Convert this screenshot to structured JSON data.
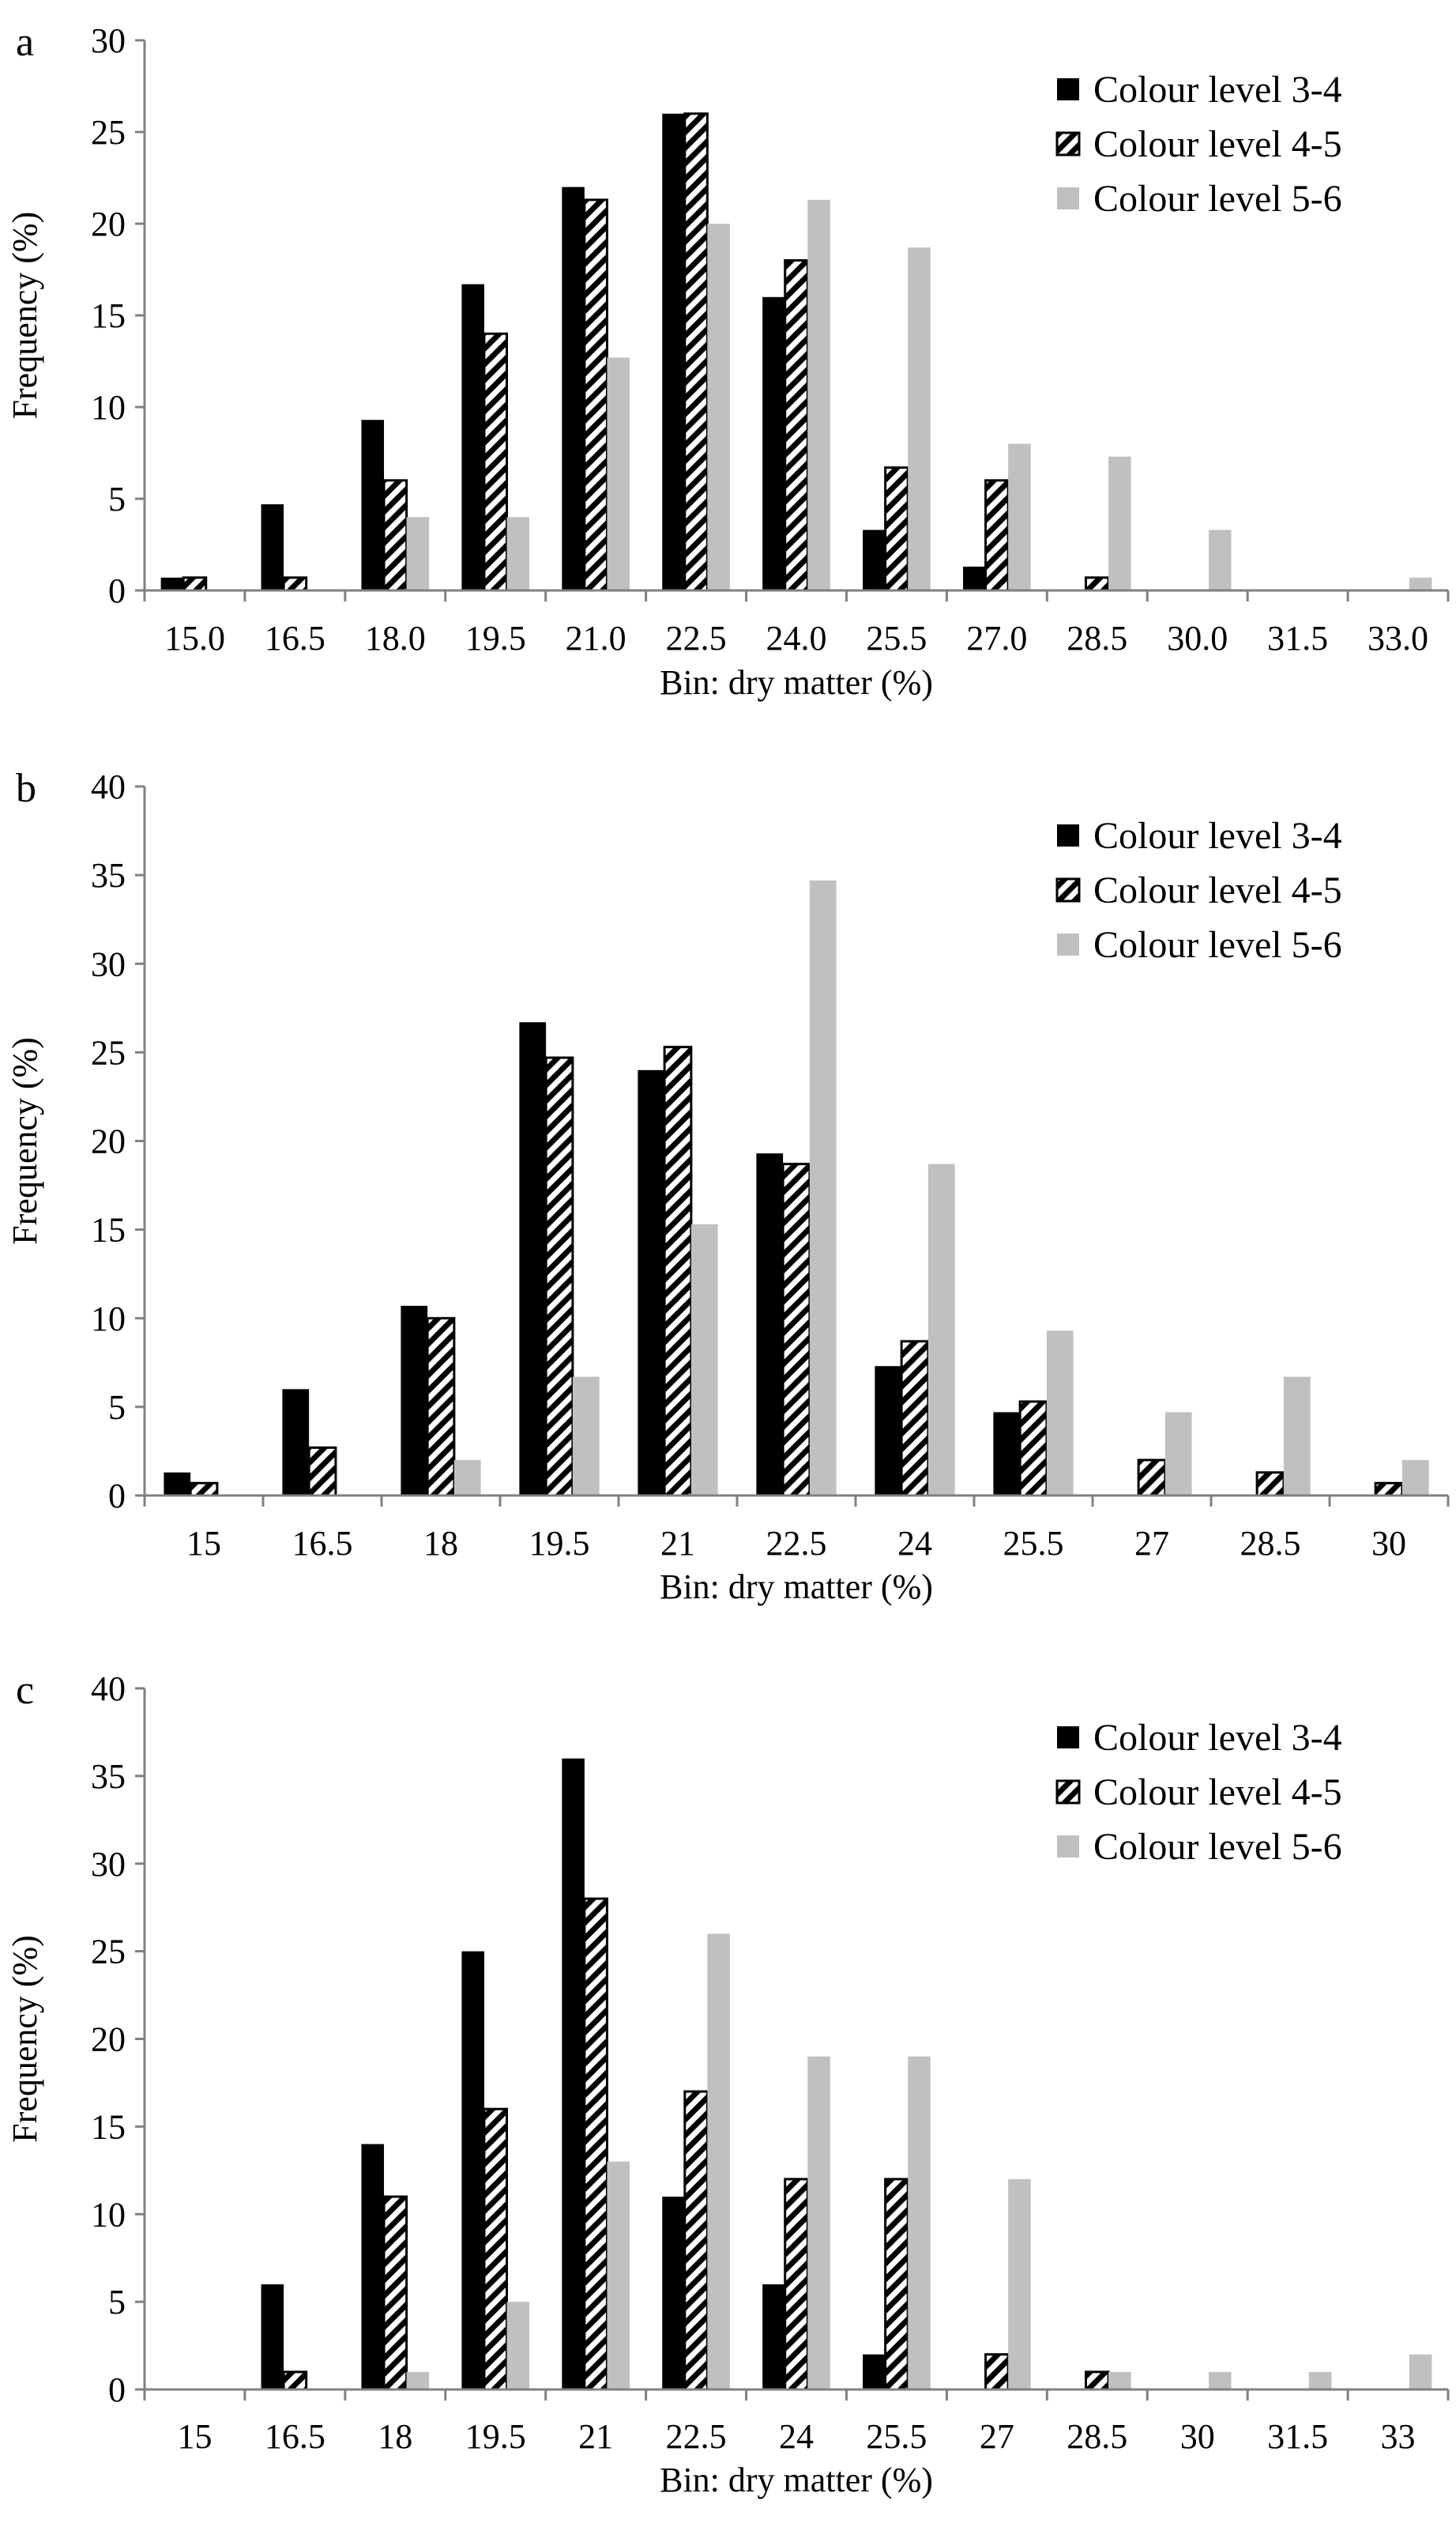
{
  "colors": {
    "series_3_4": "#000000",
    "series_4_5": "hatched black/white",
    "series_5_6": "#c0c0c0",
    "axis": "#808080"
  },
  "chart_data": [
    {
      "panel": "a",
      "type": "bar",
      "xlabel": "Bin: dry matter (%)",
      "ylabel": "Frequency (%)",
      "ylim": [
        0,
        30
      ],
      "yticks": [
        0,
        5,
        10,
        15,
        20,
        25,
        30
      ],
      "legend": "top-right",
      "categories": [
        "15.0",
        "16.5",
        "18.0",
        "19.5",
        "21.0",
        "22.5",
        "24.0",
        "25.5",
        "27.0",
        "28.5",
        "30.0",
        "31.5",
        "33.0"
      ],
      "series": [
        {
          "name": "Colour level 3-4",
          "values": [
            0.7,
            4.7,
            9.3,
            16.7,
            22,
            26,
            16,
            3.3,
            1.3,
            0,
            0,
            0,
            0
          ]
        },
        {
          "name": "Colour level 4-5",
          "values": [
            0.7,
            0.7,
            6,
            14,
            21.3,
            26,
            18,
            6.7,
            6,
            0.7,
            0,
            0,
            0
          ]
        },
        {
          "name": "Colour level 5-6",
          "values": [
            0,
            0,
            4,
            4,
            12.7,
            20,
            21.3,
            18.7,
            8,
            7.3,
            3.3,
            0,
            0.7
          ]
        }
      ]
    },
    {
      "panel": "b",
      "type": "bar",
      "xlabel": "Bin: dry matter (%)",
      "ylabel": "Frequency (%)",
      "ylim": [
        0,
        40
      ],
      "yticks": [
        0,
        5,
        10,
        15,
        20,
        25,
        30,
        35,
        40
      ],
      "legend": "top-right",
      "categories": [
        "15",
        "16.5",
        "18",
        "19.5",
        "21",
        "22.5",
        "24",
        "25.5",
        "27",
        "28.5",
        "30"
      ],
      "series": [
        {
          "name": "Colour level 3-4",
          "values": [
            1.3,
            6,
            10.7,
            26.7,
            24,
            19.3,
            7.3,
            4.7,
            0,
            0,
            0
          ]
        },
        {
          "name": "Colour level 4-5",
          "values": [
            0.7,
            2.7,
            10,
            24.7,
            25.3,
            18.7,
            8.7,
            5.3,
            2,
            1.3,
            0.7
          ]
        },
        {
          "name": "Colour level 5-6",
          "values": [
            0,
            0,
            2,
            6.7,
            15.3,
            34.7,
            18.7,
            9.3,
            4.7,
            6.7,
            2
          ]
        }
      ]
    },
    {
      "panel": "c",
      "type": "bar",
      "xlabel": "Bin: dry matter (%)",
      "ylabel": "Frequency (%)",
      "ylim": [
        0,
        40
      ],
      "yticks": [
        0,
        5,
        10,
        15,
        20,
        25,
        30,
        35,
        40
      ],
      "legend": "top-right",
      "categories": [
        "15",
        "16.5",
        "18",
        "19.5",
        "21",
        "22.5",
        "24",
        "25.5",
        "27",
        "28.5",
        "30",
        "31.5",
        "33"
      ],
      "series": [
        {
          "name": "Colour level 3-4",
          "values": [
            0,
            6,
            14,
            25,
            36,
            11,
            6,
            2,
            0,
            0,
            0,
            0,
            0
          ]
        },
        {
          "name": "Colour level 4-5",
          "values": [
            0,
            1,
            11,
            16,
            28,
            17,
            12,
            12,
            2,
            1,
            0,
            0,
            0
          ]
        },
        {
          "name": "Colour level 5-6",
          "values": [
            0,
            0,
            1,
            5,
            13,
            26,
            19,
            19,
            12,
            1,
            1,
            1,
            2
          ]
        }
      ]
    }
  ]
}
